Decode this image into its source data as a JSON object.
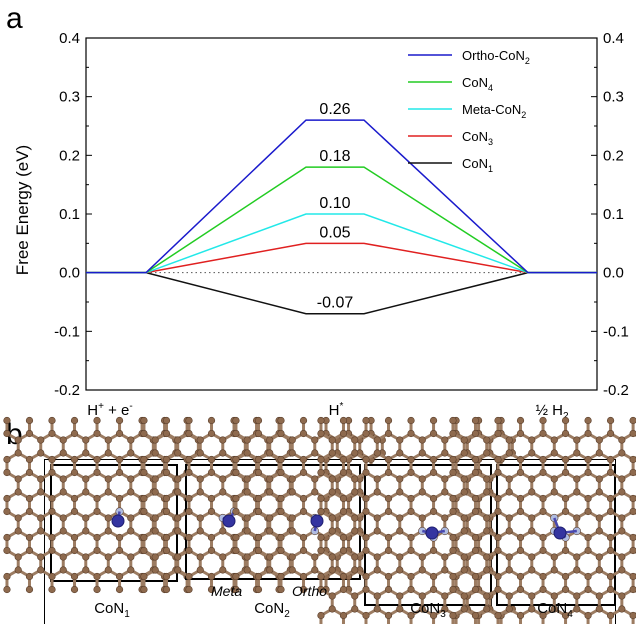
{
  "panels": {
    "a": "a",
    "b": "b"
  },
  "chart_data": {
    "type": "line",
    "ylabel": "Free Energy (eV)",
    "ylim": [
      -0.2,
      0.4
    ],
    "yticks": [
      "0.4",
      "0.3",
      "0.2",
      "0.1",
      "0.0",
      "-0.1",
      "-0.2"
    ],
    "ytick_values": [
      0.4,
      0.3,
      0.2,
      0.1,
      0.0,
      -0.1,
      -0.2
    ],
    "categories": [
      "H+ + e-",
      "H*",
      "½ H2"
    ],
    "series": [
      {
        "name": "Ortho-CoN2",
        "base": "Ortho-CoN",
        "sub": "2",
        "color": "#1a1acc",
        "values": [
          0,
          0.26,
          0
        ],
        "label": "0.26"
      },
      {
        "name": "CoN4",
        "base": "CoN",
        "sub": "4",
        "color": "#22cc22",
        "values": [
          0,
          0.18,
          0
        ],
        "label": "0.18"
      },
      {
        "name": "Meta-CoN2",
        "base": "Meta-CoN",
        "sub": "2",
        "color": "#22e8e8",
        "values": [
          0,
          0.1,
          0
        ],
        "label": "0.10"
      },
      {
        "name": "CoN3",
        "base": "CoN",
        "sub": "3",
        "color": "#e02020",
        "values": [
          0,
          0.05,
          0
        ],
        "label": "0.05"
      },
      {
        "name": "CoN1",
        "base": "CoN",
        "sub": "1",
        "color": "#111111",
        "values": [
          0,
          -0.07,
          0
        ],
        "label": "-0.07"
      }
    ],
    "grid": false,
    "legend": "top-right",
    "reference_line": {
      "y": 0.0,
      "style": "dotted"
    }
  },
  "structures": {
    "labels": [
      {
        "base": "CoN",
        "sub": "1"
      },
      {
        "base": "CoN",
        "sub": "2"
      },
      {
        "base": "CoN",
        "sub": "3"
      },
      {
        "base": "CoN",
        "sub": "4"
      }
    ],
    "meta": "Meta",
    "ortho": "Ortho"
  }
}
